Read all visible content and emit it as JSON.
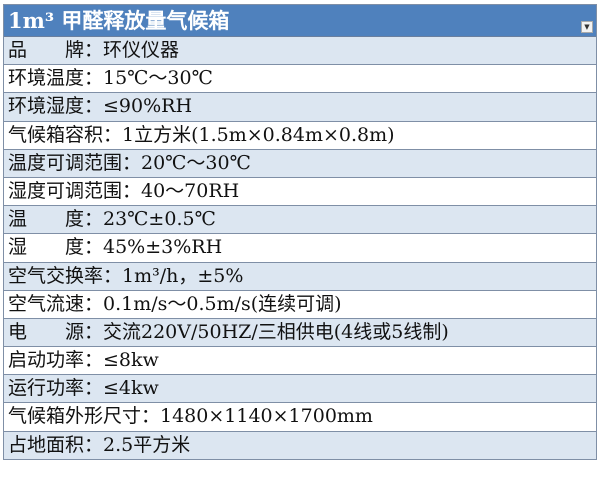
{
  "title": "1m³ 甲醛释放量气候箱",
  "colors": {
    "header_bg": "#4f81bd",
    "band": "#dce6f1"
  },
  "rows": [
    "品　　牌：环仪仪器",
    "环境温度：15℃～30℃",
    "环境湿度：≤90%RH",
    "气候箱容积：1立方米(1.5m×0.84m×0.8m)",
    "温度可调范围：20℃～30℃",
    "湿度可调范围：40～70RH",
    "温　　度：23℃±0.5℃",
    "湿　　度：45%±3%RH",
    "空气交换率：1m³/h，±5%",
    "空气流速：0.1m/s～0.5m/s(连续可调)",
    "电　　源：交流220V/50HZ/三相供电(4线或5线制)",
    "启动功率：≤8kw",
    "运行功率：≤4kw",
    "气候箱外形尺寸：1480×1140×1700mm",
    "占地面积：2.5平方米"
  ]
}
